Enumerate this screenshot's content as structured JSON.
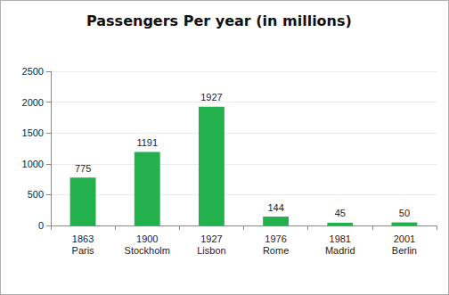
{
  "chart_data": {
    "type": "bar",
    "title": "Passengers Per year (in millions)",
    "categories": [
      "1863\nParis",
      "1900\nStockholm",
      "1927\nLisbon",
      "1976\nRome",
      "1981\nMadrid",
      "2001\nBerlin"
    ],
    "values": [
      775,
      1191,
      1927,
      144,
      45,
      50
    ],
    "color": "#22b14c",
    "ylim": [
      0,
      2500
    ],
    "yticks": [
      0,
      500,
      1000,
      1500,
      2000,
      2500
    ],
    "grid": true,
    "data_labels": true
  }
}
